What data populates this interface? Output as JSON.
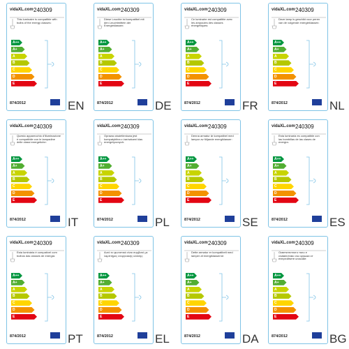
{
  "brand": "vidaXL.com",
  "product_id": "240309",
  "regulation": "874/2012",
  "classes": [
    "A++",
    "A+",
    "A",
    "B",
    "C",
    "D",
    "E"
  ],
  "labels": [
    {
      "lang": "EN",
      "text": "This luminaire is compatible with bulbs of the energy classes:"
    },
    {
      "lang": "DE",
      "text": "Diese Leuchte ist kompatibel mit den Leuchtmitteln der Energieklassen:"
    },
    {
      "lang": "FR",
      "text": "Ce luminaire est compatible avec les ampoules des classes énergétiques:"
    },
    {
      "lang": "NL",
      "text": "Deze lamp is geschikt voor peren van de volgende energieklassen:"
    },
    {
      "lang": "IT",
      "text": "Questo apparecchio d'illuminazione è compatibile con le lampadine delle classi energetiche:"
    },
    {
      "lang": "PL",
      "text": "Oprawa oświetleniowa jest kompatybilna z żarówkami klas energetycznych:"
    },
    {
      "lang": "SE",
      "text": "Denna armatur är kompatibel med lampor av följande energiklasser:"
    },
    {
      "lang": "ES",
      "text": "Esta luminaria es compatible con las bombillas de las clases de energía:"
    },
    {
      "lang": "PT",
      "text": "Esta luminária é compatível com bulbos das classes de energia:"
    },
    {
      "lang": "EL",
      "text": "Αυτό το φωτιστικό είναι συμβατό με λαμπτήρες ενεργειακής κλάσης:"
    },
    {
      "lang": "DA",
      "text": "Dette armatur er kompatibelt med lamper af energiklasserne:"
    },
    {
      "lang": "BG",
      "text": "Осветителното тяло е съвместимо със крушки от енергийните класове:"
    }
  ]
}
